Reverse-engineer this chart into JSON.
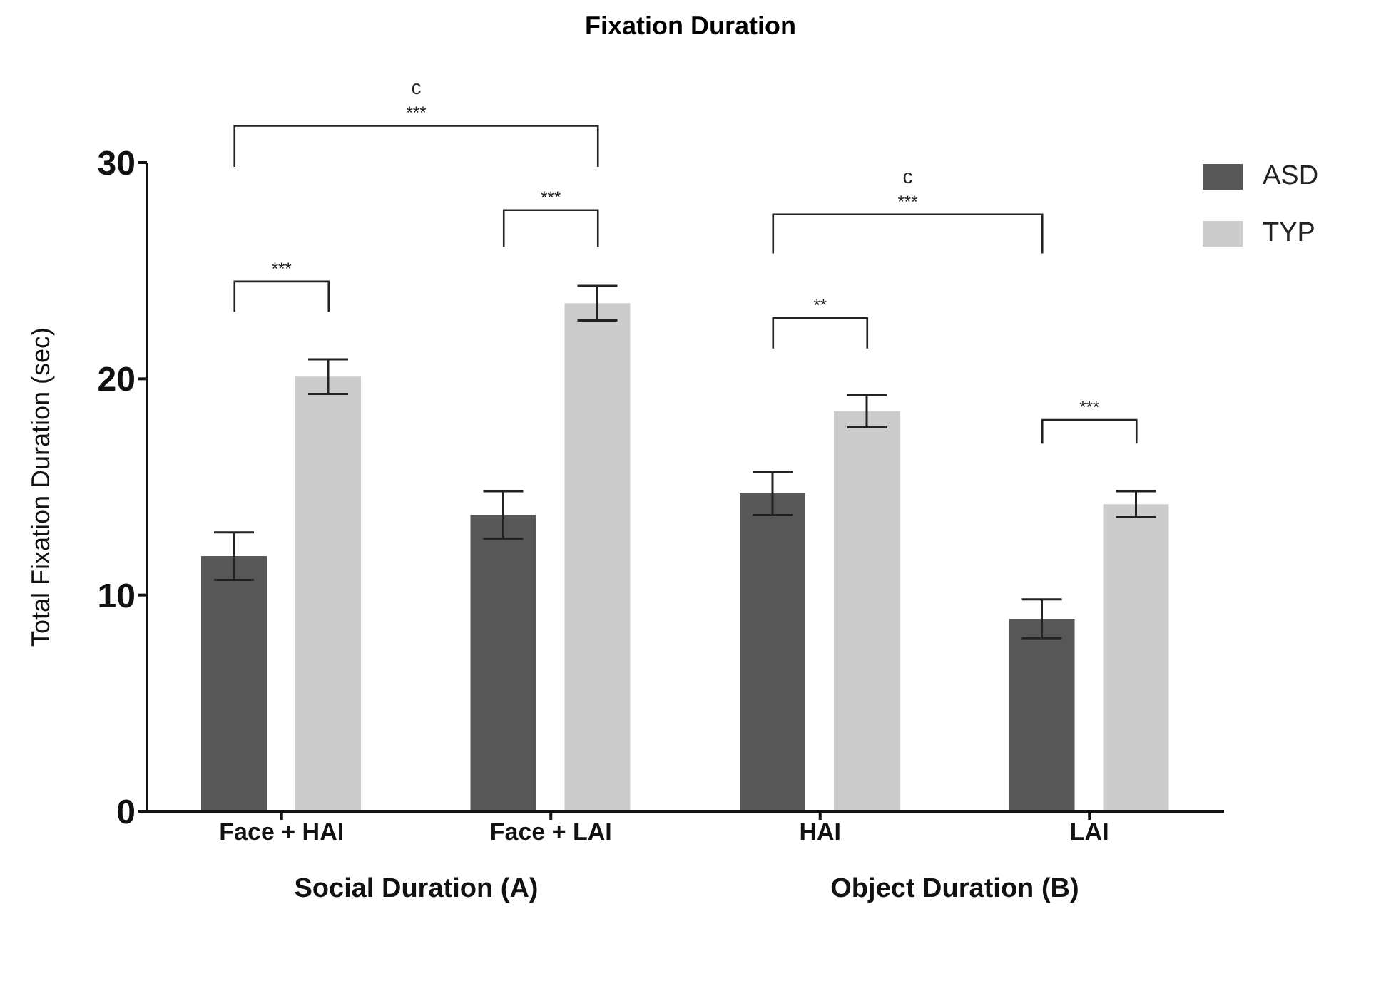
{
  "chart_data": {
    "type": "bar",
    "title": "Fixation Duration",
    "ylabel": "Total Fixation Duration (sec)",
    "categories": [
      "Face + HAI",
      "Face + LAI",
      "HAI",
      "LAI"
    ],
    "series": [
      {
        "name": "ASD",
        "color": "#575757",
        "values": [
          11.8,
          13.7,
          14.7,
          8.9
        ],
        "errors": [
          1.1,
          1.1,
          1.0,
          0.9
        ]
      },
      {
        "name": "TYP",
        "color": "#cccccc",
        "values": [
          20.1,
          23.5,
          18.5,
          14.2
        ],
        "errors": [
          0.8,
          0.8,
          0.75,
          0.6
        ]
      }
    ],
    "ylim": [
      0,
      30
    ],
    "yticks": [
      0,
      10,
      20,
      30
    ],
    "legend": "top right",
    "annotations": [
      "***",
      "***",
      "***",
      "c",
      "**",
      "***",
      "c",
      "***",
      "Social Duration (A)",
      "Object Duration (B)"
    ]
  }
}
